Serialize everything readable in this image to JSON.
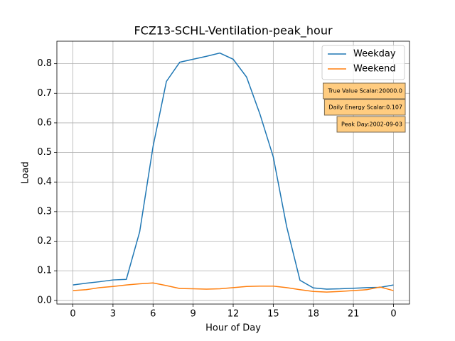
{
  "chart_data": {
    "type": "line",
    "title": "FCZ13-SCHL-Ventilation-peak_hour",
    "x_label": "Hour of Day",
    "y_label": "Load",
    "x": [
      0,
      1,
      2,
      3,
      4,
      5,
      6,
      7,
      8,
      9,
      10,
      11,
      12,
      13,
      14,
      15,
      16,
      17,
      18,
      19,
      20,
      21,
      22,
      23,
      24
    ],
    "series": [
      {
        "name": "Weekday",
        "color": "#1f77b4",
        "values": [
          0.052,
          0.058,
          0.063,
          0.069,
          0.071,
          0.232,
          0.52,
          0.74,
          0.805,
          0.815,
          0.825,
          0.836,
          0.815,
          0.755,
          0.63,
          0.485,
          0.25,
          0.068,
          0.042,
          0.038,
          0.039,
          0.041,
          0.043,
          0.044,
          0.052
        ]
      },
      {
        "name": "Weekend",
        "color": "#ff7f0e",
        "values": [
          0.033,
          0.036,
          0.043,
          0.047,
          0.052,
          0.056,
          0.059,
          0.05,
          0.04,
          0.039,
          0.038,
          0.039,
          0.043,
          0.047,
          0.048,
          0.048,
          0.043,
          0.036,
          0.03,
          0.028,
          0.03,
          0.033,
          0.036,
          0.045,
          0.033
        ]
      }
    ],
    "xlim": [
      -1.2,
      25.2
    ],
    "ylim": [
      -0.0125,
      0.876
    ],
    "xticks": [
      0,
      3,
      6,
      9,
      12,
      15,
      18,
      21,
      {
        "value": 24,
        "label": "0"
      }
    ],
    "yticks": [
      {
        "value": 0,
        "label": "0.0"
      },
      0.1,
      0.2,
      0.3,
      0.4,
      0.5,
      0.6,
      0.7,
      0.8
    ],
    "grid": true,
    "legend": "upper right",
    "annotations": [
      "True Value Scalar:20000.0",
      "Daily Energy Scalar:0.107",
      "Peak Day:2002-09-03"
    ],
    "annotation_color": "#ffcc80"
  }
}
